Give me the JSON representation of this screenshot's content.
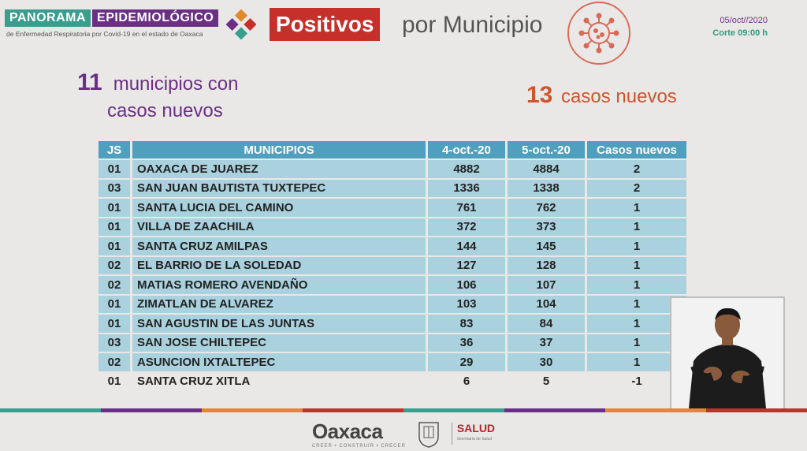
{
  "header": {
    "brand_panorama": "PANORAMA",
    "brand_epidemiologico": "EPIDEMIOLÓGICO",
    "brand_subtitle": "de Enfermedad Respiratoria por Covid-19 en el estado de Oaxaca",
    "title_highlight": "Positivos",
    "title_rest": "por Municipio",
    "date": "05/oct//2020",
    "cutoff": "Corte 09:00 h"
  },
  "stats": {
    "municipios_count": "11",
    "municipios_line1": "municipios con",
    "municipios_line2": "casos nuevos",
    "casos_count": "13",
    "casos_label": "casos nuevos"
  },
  "table": {
    "headers": {
      "js": "JS",
      "municipios": "MUNICIPIOS",
      "day1": "4-oct.-20",
      "day2": "5-oct.-20",
      "new": "Casos nuevos"
    },
    "rows": [
      {
        "js": "01",
        "municipio": "OAXACA DE JUAREZ",
        "day1": "4882",
        "day2": "4884",
        "new": "2"
      },
      {
        "js": "03",
        "municipio": "SAN JUAN BAUTISTA TUXTEPEC",
        "day1": "1336",
        "day2": "1338",
        "new": "2"
      },
      {
        "js": "01",
        "municipio": "SANTA LUCIA DEL CAMINO",
        "day1": "761",
        "day2": "762",
        "new": "1"
      },
      {
        "js": "01",
        "municipio": "VILLA DE ZAACHILA",
        "day1": "372",
        "day2": "373",
        "new": "1"
      },
      {
        "js": "01",
        "municipio": "SANTA CRUZ AMILPAS",
        "day1": "144",
        "day2": "145",
        "new": "1"
      },
      {
        "js": "02",
        "municipio": "EL BARRIO DE LA SOLEDAD",
        "day1": "127",
        "day2": "128",
        "new": "1"
      },
      {
        "js": "02",
        "municipio": "MATIAS ROMERO AVENDAÑO",
        "day1": "106",
        "day2": "107",
        "new": "1"
      },
      {
        "js": "01",
        "municipio": "ZIMATLAN DE ALVAREZ",
        "day1": "103",
        "day2": "104",
        "new": "1"
      },
      {
        "js": "01",
        "municipio": "SAN AGUSTIN DE LAS JUNTAS",
        "day1": "83",
        "day2": "84",
        "new": "1"
      },
      {
        "js": "03",
        "municipio": "SAN JOSE CHILTEPEC",
        "day1": "36",
        "day2": "37",
        "new": "1"
      },
      {
        "js": "02",
        "municipio": "ASUNCION IXTALTEPEC",
        "day1": "29",
        "day2": "30",
        "new": "1"
      },
      {
        "js": "01",
        "municipio": "SANTA CRUZ XITLA",
        "day1": "6",
        "day2": "5",
        "new": "-1"
      }
    ]
  },
  "footer": {
    "oaxaca_logo": "Oaxaca",
    "oaxaca_tagline": "CREER • CONSTRUIR • CRECER",
    "salud": "SALUD",
    "salud_sub": "Secretaría de Salud"
  },
  "colors": {
    "teal": "#3a9e8f",
    "purple": "#6b2f86",
    "red": "#c5302a",
    "orange": "#d0542e",
    "table_header": "#4fa0be",
    "table_row": "#a9d2de"
  }
}
